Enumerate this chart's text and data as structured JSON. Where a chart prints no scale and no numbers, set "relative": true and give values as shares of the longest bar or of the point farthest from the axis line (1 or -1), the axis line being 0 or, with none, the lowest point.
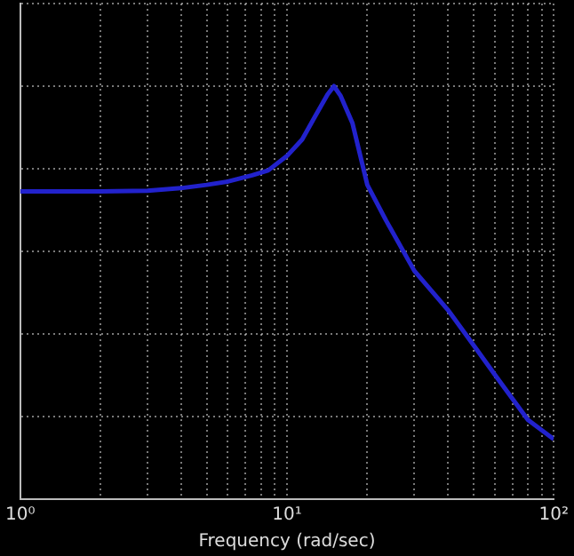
{
  "chart_data": {
    "type": "line",
    "xlabel": "Frequency (rad/sec)",
    "relative": true,
    "log": "x",
    "xlim": [
      1,
      100
    ],
    "xticks": [
      {
        "value": 1,
        "label": "10⁰"
      },
      {
        "value": 10,
        "label": "10¹"
      },
      {
        "value": 100,
        "label": "10²"
      }
    ],
    "grid": true,
    "marker": "none",
    "line_style": "solid",
    "legend": false,
    "series": [
      {
        "color": "#2222cc",
        "x": [
          1,
          2,
          3,
          4,
          5,
          6,
          7.4,
          8.5,
          10,
          11.4,
          12.8,
          14.2,
          15,
          15.9,
          17.6,
          20,
          23.5,
          30,
          40,
          50,
          60,
          70,
          80,
          100
        ],
        "values": [
          0.745,
          0.745,
          0.747,
          0.753,
          0.761,
          0.769,
          0.784,
          0.796,
          0.831,
          0.871,
          0.929,
          0.98,
          1,
          0.976,
          0.91,
          0.761,
          0.675,
          0.553,
          0.459,
          0.373,
          0.302,
          0.243,
          0.192,
          0.145
        ]
      }
    ]
  }
}
